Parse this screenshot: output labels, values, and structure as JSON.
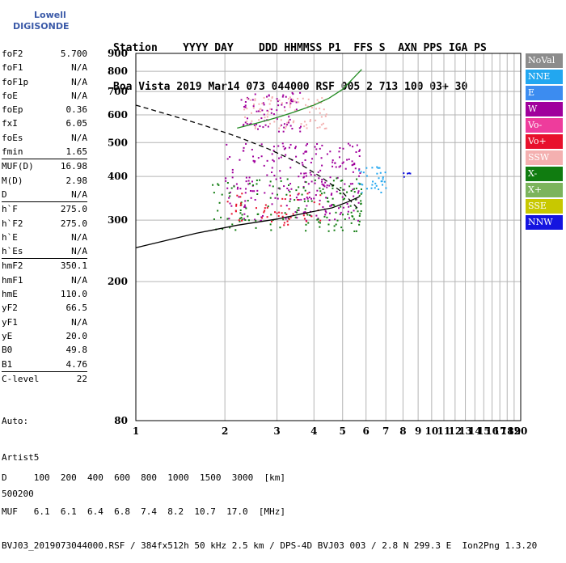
{
  "logo": {
    "line1": "Lowell",
    "line2": "DIGISONDE"
  },
  "header": {
    "line1": "Station    YYYY DAY    DDD HHMMSS P1  FFS S  AXN PPS IGA PS",
    "line2": "Boa Vista 2019 Mar14 073 044000 RSF 005 2 713 100 03+ 30"
  },
  "params": [
    {
      "k": "foF2",
      "v": "5.700",
      "sep": false
    },
    {
      "k": "foF1",
      "v": "N/A",
      "sep": false
    },
    {
      "k": "foF1p",
      "v": "N/A",
      "sep": false
    },
    {
      "k": "foE",
      "v": "N/A",
      "sep": false
    },
    {
      "k": "foEp",
      "v": "0.36",
      "sep": false
    },
    {
      "k": "fxI",
      "v": "6.05",
      "sep": false
    },
    {
      "k": "foEs",
      "v": "N/A",
      "sep": false
    },
    {
      "k": "fmin",
      "v": "1.65",
      "sep": false
    },
    {
      "k": "MUF(D)",
      "v": "16.98",
      "sep": true
    },
    {
      "k": "M(D)",
      "v": "2.98",
      "sep": false
    },
    {
      "k": "D",
      "v": "N/A",
      "sep": false
    },
    {
      "k": "h`F",
      "v": "275.0",
      "sep": true
    },
    {
      "k": "h`F2",
      "v": "275.0",
      "sep": false
    },
    {
      "k": "h`E",
      "v": "N/A",
      "sep": false
    },
    {
      "k": "h`Es",
      "v": "N/A",
      "sep": false
    },
    {
      "k": "hmF2",
      "v": "350.1",
      "sep": true
    },
    {
      "k": "hmF1",
      "v": "N/A",
      "sep": false
    },
    {
      "k": "hmE",
      "v": "110.0",
      "sep": false
    },
    {
      "k": "yF2",
      "v": "66.5",
      "sep": false
    },
    {
      "k": "yF1",
      "v": "N/A",
      "sep": false
    },
    {
      "k": "yE",
      "v": "20.0",
      "sep": false
    },
    {
      "k": "B0",
      "v": "49.8",
      "sep": false
    },
    {
      "k": "B1",
      "v": "4.76",
      "sep": false
    },
    {
      "k": "C-level",
      "v": "22",
      "sep": true
    }
  ],
  "auto": {
    "l1": "Auto:",
    "l2": "Artist5",
    "l3": "500200"
  },
  "legend": [
    {
      "label": "NoVal",
      "color": "#8c8c8c"
    },
    {
      "label": "NNE",
      "color": "#22a7f0"
    },
    {
      "label": "E",
      "color": "#3c8cf0"
    },
    {
      "label": "W",
      "color": "#a0009c"
    },
    {
      "label": "Vo-",
      "color": "#ee3c9c"
    },
    {
      "label": "Vo+",
      "color": "#e8102c"
    },
    {
      "label": "SSW",
      "color": "#f4b0b0"
    },
    {
      "label": "X-",
      "color": "#107c10"
    },
    {
      "label": "X+",
      "color": "#7cb45c"
    },
    {
      "label": "SSE",
      "color": "#c8c800"
    },
    {
      "label": "NNW",
      "color": "#1414e0"
    }
  ],
  "bottom": {
    "l1": "D     100  200  400  600  800  1000  1500  3000  [km]",
    "l2": "MUF   6.1  6.1  6.4  6.8  7.4  8.2  10.7  17.0  [MHz]",
    "l3": "BVJ03_2019073044000.RSF / 384fx512h 50 kHz 2.5 km / DPS-4D BVJ03 003 / 2.8 N 299.3 E  Ion2Png 1.3.20"
  },
  "chart_data": {
    "type": "scatter",
    "title": "",
    "xlabel": "",
    "ylabel": "",
    "xlim": [
      1,
      20
    ],
    "ylim": [
      80,
      900
    ],
    "x_scale": "log",
    "y_scale": "log",
    "x_ticks": [
      1,
      2,
      3,
      4,
      5,
      6,
      7,
      8,
      9,
      10,
      11,
      12,
      13,
      14,
      15,
      16,
      17,
      18,
      19,
      20
    ],
    "y_ticks": [
      80,
      200,
      300,
      400,
      500,
      600,
      700,
      800,
      900
    ],
    "grid": true,
    "legend_position": "right",
    "series": [
      {
        "name": "W",
        "color": "#a0009c",
        "clusters": [
          {
            "x": [
              2.0,
              5.8
            ],
            "y": [
              300,
              500
            ]
          },
          {
            "x": [
              2.2,
              3.6
            ],
            "y": [
              540,
              700
            ]
          }
        ]
      },
      {
        "name": "NNE",
        "color": "#22a7f0",
        "clusters": [
          {
            "x": [
              5.6,
              7.0
            ],
            "y": [
              360,
              430
            ]
          }
        ]
      },
      {
        "name": "NNW",
        "color": "#1414e0",
        "clusters": [
          {
            "x": [
              7.8,
              8.6
            ],
            "y": [
              400,
              420
            ]
          }
        ]
      },
      {
        "name": "SSW",
        "color": "#f4b0b0",
        "clusters": [
          {
            "x": [
              2.3,
              4.4
            ],
            "y": [
              550,
              680
            ]
          }
        ]
      },
      {
        "name": "X-",
        "color": "#107c10",
        "clusters": [
          {
            "x": [
              1.8,
              5.8
            ],
            "y": [
              280,
              400
            ]
          }
        ]
      },
      {
        "name": "Vo+",
        "color": "#e8102c",
        "clusters": [
          {
            "x": [
              1.9,
              4.2
            ],
            "y": [
              290,
              360
            ]
          }
        ]
      }
    ],
    "traces": [
      {
        "name": "",
        "color": "#000000",
        "style": "dashed",
        "x": [
          1.0,
          1.3,
          1.7,
          2.2,
          2.8,
          3.5,
          4.2,
          5.0,
          5.7
        ],
        "y": [
          640,
          600,
          560,
          520,
          480,
          440,
          400,
          360,
          320
        ]
      },
      {
        "name": "",
        "color": "#000000",
        "style": "solid",
        "x": [
          1.0,
          1.6,
          2.2,
          3.0,
          3.8,
          4.6,
          5.2,
          5.7
        ],
        "y": [
          250,
          275,
          290,
          302,
          315,
          325,
          338,
          350
        ]
      },
      {
        "name": "",
        "color": "#228b22",
        "style": "solid",
        "x": [
          2.2,
          2.6,
          3.0,
          3.4,
          4.0,
          4.5,
          5.0,
          5.4,
          5.8
        ],
        "y": [
          550,
          570,
          590,
          610,
          640,
          670,
          710,
          760,
          810
        ]
      }
    ]
  }
}
